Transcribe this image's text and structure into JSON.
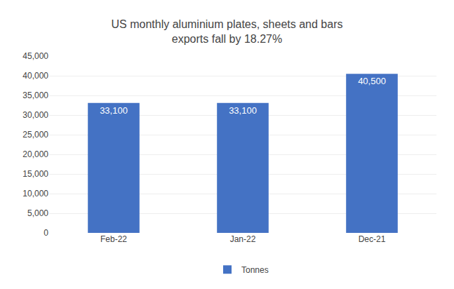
{
  "chart_data": {
    "type": "bar",
    "title": "US monthly aluminium plates, sheets and bars\nexports fall by 18.27%",
    "categories": [
      "Feb-22",
      "Jan-22",
      "Dec-21"
    ],
    "series": [
      {
        "name": "Tonnes",
        "color": "#4472C4",
        "values": [
          33100,
          33100,
          40500
        ],
        "value_labels": [
          "33,100",
          "33,100",
          "40,500"
        ]
      }
    ],
    "data_labels": true,
    "ylim": [
      0,
      45000
    ],
    "yticks": [
      0,
      {
        "value": 5000,
        "label": "5,000"
      },
      {
        "value": 10000,
        "label": "10,000"
      },
      {
        "value": 15000,
        "label": "15,000"
      },
      {
        "value": 20000,
        "label": "20,000"
      },
      {
        "value": 25000,
        "label": "25,000"
      },
      {
        "value": 30000,
        "label": "30,000"
      },
      {
        "value": 35000,
        "label": "35,000"
      },
      {
        "value": 40000,
        "label": "40,000"
      },
      {
        "value": 45000,
        "label": "45,000"
      }
    ],
    "grid": true,
    "legend": "bottom"
  }
}
